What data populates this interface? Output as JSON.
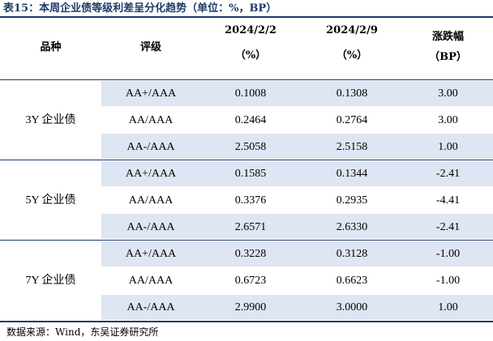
{
  "title": "表15：本周企业债等级利差呈分化趋势（单位：%，BP）",
  "header": {
    "kind": "品种",
    "grade": "评级",
    "date1": "2024/2/2",
    "date1_unit": "（%）",
    "date2": "2024/2/9",
    "date2_unit": "（%）",
    "change": "涨跌幅",
    "change_unit": "（BP）"
  },
  "groups": [
    {
      "kind": "3Y 企业债",
      "rows": [
        {
          "grade": "AA+/AAA",
          "d1": "0.1008",
          "d2": "0.1308",
          "chg": "3.00"
        },
        {
          "grade": "AA/AAA",
          "d1": "0.2464",
          "d2": "0.2764",
          "chg": "3.00"
        },
        {
          "grade": "AA-/AAA",
          "d1": "2.5058",
          "d2": "2.5158",
          "chg": "1.00"
        }
      ]
    },
    {
      "kind": "5Y 企业债",
      "rows": [
        {
          "grade": "AA+/AAA",
          "d1": "0.1585",
          "d2": "0.1344",
          "chg": "-2.41"
        },
        {
          "grade": "AA/AAA",
          "d1": "0.3376",
          "d2": "0.2935",
          "chg": "-4.41"
        },
        {
          "grade": "AA-/AAA",
          "d1": "2.6571",
          "d2": "2.6330",
          "chg": "-2.41"
        }
      ]
    },
    {
      "kind": "7Y 企业债",
      "rows": [
        {
          "grade": "AA+/AAA",
          "d1": "0.3228",
          "d2": "0.3128",
          "chg": "-1.00"
        },
        {
          "grade": "AA/AAA",
          "d1": "0.6723",
          "d2": "0.6623",
          "chg": "-1.00"
        },
        {
          "grade": "AA-/AAA",
          "d1": "2.9900",
          "d2": "3.0000",
          "chg": "1.00"
        }
      ]
    }
  ],
  "source": "数据来源：Wind，东吴证券研究所"
}
